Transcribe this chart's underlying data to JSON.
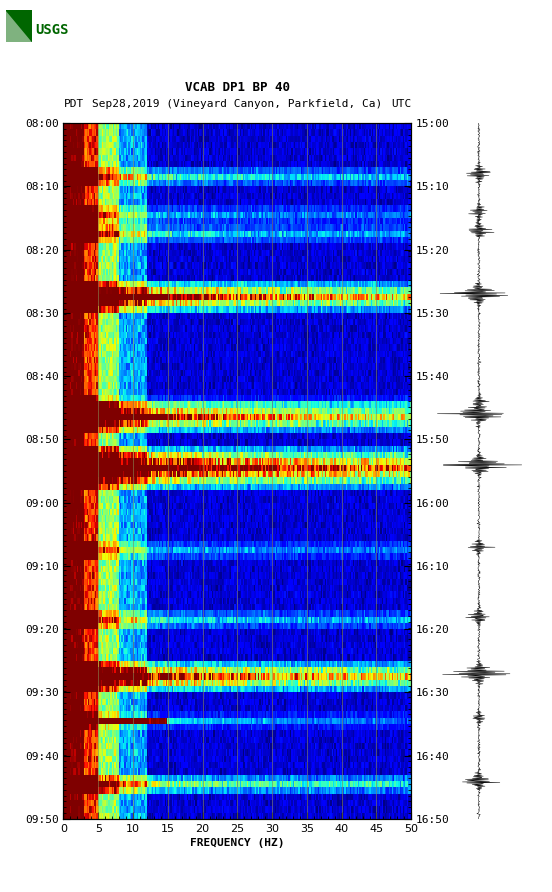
{
  "title_line1": "VCAB DP1 BP 40",
  "title_line2_left": "PDT",
  "title_line2_mid": "Sep28,2019 (Vineyard Canyon, Parkfield, Ca)",
  "title_line2_right": "UTC",
  "xlabel": "FREQUENCY (HZ)",
  "freq_min": 0,
  "freq_max": 50,
  "freq_ticks": [
    0,
    5,
    10,
    15,
    20,
    25,
    30,
    35,
    40,
    45,
    50
  ],
  "time_labels_left": [
    "08:00",
    "08:10",
    "08:20",
    "08:30",
    "08:40",
    "08:50",
    "09:00",
    "09:10",
    "09:20",
    "09:30",
    "09:40",
    "09:50"
  ],
  "time_labels_right": [
    "15:00",
    "15:10",
    "15:20",
    "15:30",
    "15:40",
    "15:50",
    "16:00",
    "16:10",
    "16:20",
    "16:30",
    "16:40",
    "16:50"
  ],
  "n_time_steps": 110,
  "n_freq_steps": 250,
  "background_color": "#ffffff",
  "vertical_line_color": "#888855",
  "vertical_lines_freq": [
    5,
    10,
    15,
    20,
    25,
    30,
    35,
    40,
    45
  ],
  "logo_color": "#006600",
  "colormap": "jet",
  "fig_width": 5.52,
  "fig_height": 8.92,
  "dpi": 100,
  "seismogram_color": "#000000",
  "noise_seed": 42,
  "event_rows": [
    8,
    14,
    17,
    27,
    44,
    46,
    54,
    67,
    78,
    87,
    94,
    104
  ],
  "event_mags": [
    0.5,
    0.35,
    0.45,
    1.1,
    0.25,
    1.0,
    1.3,
    0.35,
    0.45,
    1.1,
    0.25,
    0.65
  ],
  "seis_event_rows": [
    8,
    14,
    17,
    27,
    44,
    46,
    54,
    67,
    78,
    87,
    94,
    104
  ],
  "seis_event_mags": [
    0.5,
    0.35,
    0.45,
    1.1,
    0.25,
    1.0,
    1.3,
    0.35,
    0.45,
    1.1,
    0.25,
    0.65
  ]
}
